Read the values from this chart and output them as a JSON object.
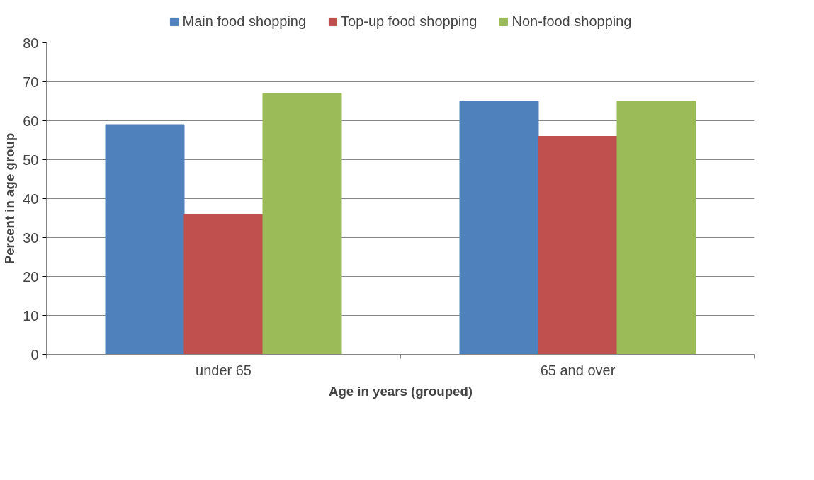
{
  "chart_data": {
    "type": "bar",
    "xlabel": "Age in years (grouped)",
    "ylabel": "Percent in age group",
    "categories": [
      "under 65",
      "65 and over"
    ],
    "series": [
      {
        "name": "Main food shopping",
        "color": "#4f81bd",
        "values": [
          59,
          65
        ]
      },
      {
        "name": "Top-up food shopping",
        "color": "#c0504d",
        "values": [
          36,
          56
        ]
      },
      {
        "name": "Non-food shopping",
        "color": "#9bbb59",
        "values": [
          67,
          65
        ]
      }
    ],
    "ylim": [
      0,
      80
    ],
    "yticks": [
      0,
      10,
      20,
      30,
      40,
      50,
      60,
      70,
      80
    ],
    "grid": "y",
    "legend": "top"
  }
}
